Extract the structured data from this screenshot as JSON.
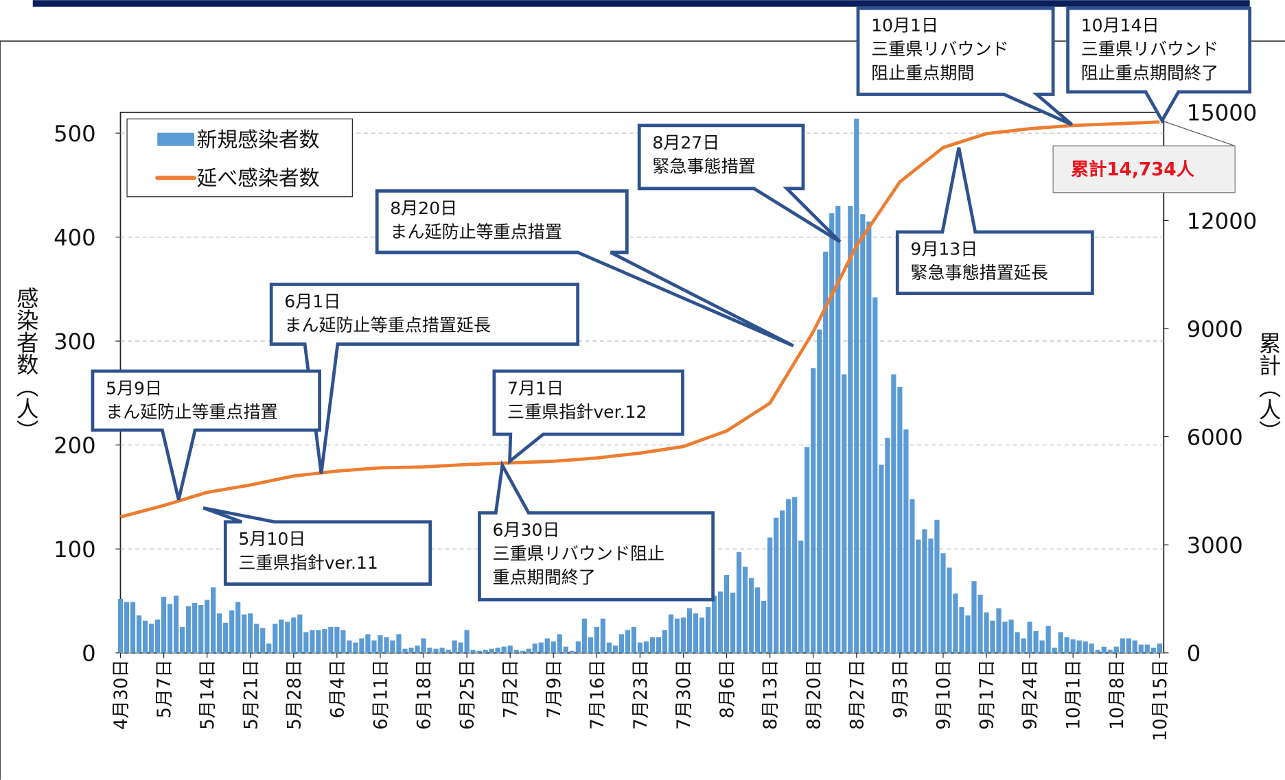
{
  "chart_data": {
    "type": "bar_line",
    "y_label": "感染者数（人）",
    "y2_label": "累計（人）",
    "categories": [
      "4月30日",
      null,
      null,
      null,
      null,
      null,
      null,
      "5月7日",
      null,
      null,
      null,
      null,
      null,
      null,
      "5月14日",
      null,
      null,
      null,
      null,
      null,
      null,
      "5月21日",
      null,
      null,
      null,
      null,
      null,
      null,
      "5月28日",
      null,
      null,
      null,
      null,
      null,
      null,
      "6月4日",
      null,
      null,
      null,
      null,
      null,
      null,
      "6月11日",
      null,
      null,
      null,
      null,
      null,
      null,
      "6月18日",
      null,
      null,
      null,
      null,
      null,
      null,
      "6月25日",
      null,
      null,
      null,
      null,
      null,
      null,
      "7月2日",
      null,
      null,
      null,
      null,
      null,
      null,
      "7月9日",
      null,
      null,
      null,
      null,
      null,
      null,
      "7月16日",
      null,
      null,
      null,
      null,
      null,
      null,
      "7月23日",
      null,
      null,
      null,
      null,
      null,
      null,
      "7月30日",
      null,
      null,
      null,
      null,
      null,
      null,
      "8月6日",
      null,
      null,
      null,
      null,
      null,
      null,
      "8月13日",
      null,
      null,
      null,
      null,
      null,
      null,
      "8月20日",
      null,
      null,
      null,
      null,
      null,
      null,
      "8月27日",
      null,
      null,
      null,
      null,
      null,
      null,
      "9月3日",
      null,
      null,
      null,
      null,
      null,
      null,
      "9月10日",
      null,
      null,
      null,
      null,
      null,
      null,
      "9月17日",
      null,
      null,
      null,
      null,
      null,
      null,
      "9月24日",
      null,
      null,
      null,
      null,
      null,
      null,
      "10月1日",
      null,
      null,
      null,
      null,
      null,
      null,
      "10月8日",
      null,
      null,
      null,
      null,
      null,
      null,
      "10月15日"
    ],
    "series": [
      {
        "name": "新規感染者数",
        "type": "bar",
        "color": "#5b9bd5",
        "values": [
          52,
          49,
          49,
          36,
          31,
          28,
          32,
          54,
          47,
          55,
          25,
          45,
          48,
          46,
          51,
          63,
          38,
          29,
          41,
          49,
          37,
          38,
          28,
          24,
          9,
          28,
          32,
          30,
          34,
          37,
          20,
          22,
          22,
          23,
          25,
          25,
          22,
          12,
          10,
          14,
          18,
          12,
          17,
          15,
          12,
          18,
          4,
          5,
          7,
          14,
          5,
          4,
          5,
          3,
          12,
          10,
          22,
          3,
          2,
          3,
          4,
          5,
          6,
          7,
          3,
          2,
          4,
          9,
          10,
          14,
          11,
          18,
          6,
          2,
          11,
          33,
          15,
          25,
          33,
          10,
          7,
          18,
          22,
          25,
          10,
          11,
          15,
          15,
          22,
          37,
          33,
          34,
          43,
          38,
          34,
          44,
          55,
          59,
          75,
          58,
          97,
          83,
          72,
          63,
          50,
          111,
          130,
          137,
          148,
          150,
          108,
          198,
          274,
          311,
          386,
          423,
          430,
          268,
          430,
          514,
          422,
          415,
          342,
          181,
          207,
          268,
          256,
          215,
          148,
          109,
          119,
          110,
          128,
          96,
          82,
          57,
          44,
          36,
          69,
          56,
          39,
          31,
          43,
          30,
          32,
          20,
          14,
          30,
          21,
          12,
          26,
          5,
          20,
          15,
          13,
          12,
          11,
          9,
          3,
          6,
          3,
          6,
          14,
          14,
          12,
          8,
          8,
          5,
          9
        ]
      },
      {
        "name": "延べ感染者数",
        "type": "line",
        "axis": "y2",
        "color": "#ed7d31",
        "values": [
          3773,
          3818,
          3864,
          3909,
          3955,
          4000,
          4046,
          4091,
          4143,
          4195,
          4247,
          4299,
          4351,
          4403,
          4455,
          4484,
          4514,
          4543,
          4572,
          4601,
          4631,
          4660,
          4696,
          4731,
          4767,
          4802,
          4838,
          4873,
          4909,
          4928,
          4948,
          4967,
          4987,
          5006,
          5026,
          5045,
          5058,
          5071,
          5084,
          5097,
          5110,
          5123,
          5136,
          5139,
          5143,
          5146,
          5150,
          5153,
          5157,
          5160,
          5170,
          5179,
          5189,
          5198,
          5208,
          5217,
          5227,
          5234,
          5240,
          5247,
          5253,
          5260,
          5266,
          5273,
          5279,
          5286,
          5292,
          5299,
          5305,
          5312,
          5318,
          5331,
          5344,
          5357,
          5370,
          5383,
          5396,
          5409,
          5428,
          5448,
          5467,
          5487,
          5506,
          5526,
          5545,
          5571,
          5597,
          5623,
          5649,
          5675,
          5701,
          5727,
          5789,
          5850,
          5912,
          5974,
          6035,
          6097,
          6159,
          6269,
          6380,
          6490,
          6601,
          6711,
          6821,
          6932,
          7214,
          7497,
          7779,
          8062,
          8344,
          8627,
          8909,
          9250,
          9591,
          9932,
          10273,
          10614,
          10954,
          11295,
          11548,
          11802,
          12055,
          12308,
          12562,
          12815,
          13068,
          13204,
          13341,
          13477,
          13614,
          13750,
          13887,
          14023,
          14078,
          14133,
          14188,
          14244,
          14299,
          14354,
          14409,
          14429,
          14448,
          14468,
          14487,
          14507,
          14526,
          14546,
          14559,
          14572,
          14585,
          14598,
          14611,
          14624,
          14637,
          14643,
          14650,
          14656,
          14663,
          14669,
          14676,
          14682,
          14689,
          14697,
          14704,
          14711,
          14719,
          14726,
          14734
        ]
      }
    ],
    "ylim": [
      0,
      520
    ],
    "yticks": [
      0,
      100,
      200,
      300,
      400,
      500
    ],
    "y2lim": [
      0,
      15000
    ],
    "y2ticks": [
      0,
      3000,
      6000,
      9000,
      12000,
      15000
    ],
    "grid": true,
    "legend": "upper left",
    "annotations": [
      {
        "lines": [
          "10月1日",
          "三重県リバウンド",
          "阻止重点期間"
        ]
      },
      {
        "lines": [
          "10月14日",
          "三重県リバウンド",
          "阻止重点期間終了"
        ]
      },
      {
        "lines": [
          "8月27日",
          "緊急事態措置"
        ]
      },
      {
        "lines": [
          "8月20日",
          "まん延防止等重点措置"
        ]
      },
      {
        "lines": [
          "9月13日",
          "緊急事態措置延長"
        ]
      },
      {
        "lines": [
          "6月1日",
          "まん延防止等重点措置延長"
        ]
      },
      {
        "lines": [
          "5月9日",
          "まん延防止等重点措置"
        ]
      },
      {
        "lines": [
          "7月1日",
          "三重県指針ver.12"
        ]
      },
      {
        "lines": [
          "5月10日",
          "三重県指針ver.11"
        ]
      },
      {
        "lines": [
          "6月30日",
          "三重県リバウンド阻止",
          "重点期間終了"
        ]
      }
    ],
    "total_label": "累計14,734人"
  }
}
